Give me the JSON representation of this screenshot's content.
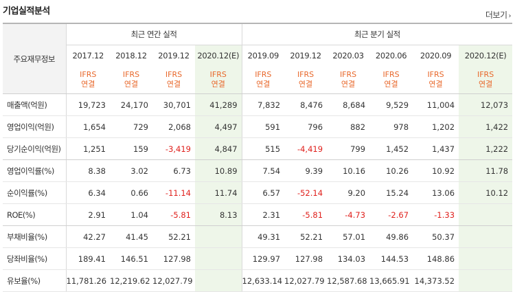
{
  "header": {
    "title": "기업실적분석",
    "more_label": "더보기"
  },
  "table": {
    "label_header": "주요재무정보",
    "group_annual": "최근 연간 실적",
    "group_quarter": "최근 분기 실적",
    "periods": [
      "2017.12",
      "2018.12",
      "2019.12",
      "2020.12(E)",
      "2019.09",
      "2019.12",
      "2020.03",
      "2020.06",
      "2020.09",
      "2020.12(E)"
    ],
    "ifrs_line1": "IFRS",
    "ifrs_line2": "연결",
    "rows": [
      {
        "label": "매출액(억원)",
        "values": [
          "19,723",
          "24,170",
          "30,701",
          "41,289",
          "7,832",
          "8,476",
          "8,684",
          "9,529",
          "11,004",
          "12,073"
        ]
      },
      {
        "label": "영업이익(억원)",
        "values": [
          "1,654",
          "729",
          "2,068",
          "4,497",
          "591",
          "796",
          "882",
          "978",
          "1,202",
          "1,422"
        ]
      },
      {
        "label": "당기순이익(억원)",
        "values": [
          "1,251",
          "159",
          "-3,419",
          "4,847",
          "515",
          "-4,419",
          "799",
          "1,452",
          "1,437",
          "1,222"
        ]
      },
      {
        "label": "영업이익률(%)",
        "values": [
          "8.38",
          "3.02",
          "6.73",
          "10.89",
          "7.54",
          "9.39",
          "10.16",
          "10.26",
          "10.92",
          "11.78"
        ]
      },
      {
        "label": "순이익률(%)",
        "values": [
          "6.34",
          "0.66",
          "-11.14",
          "11.74",
          "6.57",
          "-52.14",
          "9.20",
          "15.24",
          "13.06",
          "10.12"
        ]
      },
      {
        "label": "ROE(%)",
        "values": [
          "2.91",
          "1.04",
          "-5.81",
          "8.13",
          "2.31",
          "-5.81",
          "-4.73",
          "-2.67",
          "-1.33",
          ""
        ]
      },
      {
        "label": "부채비율(%)",
        "values": [
          "42.27",
          "41.45",
          "52.21",
          "",
          "49.31",
          "52.21",
          "57.01",
          "49.86",
          "50.37",
          ""
        ]
      },
      {
        "label": "당좌비율(%)",
        "values": [
          "189.41",
          "146.51",
          "127.98",
          "",
          "129.97",
          "127.98",
          "134.03",
          "144.53",
          "148.86",
          ""
        ]
      },
      {
        "label": "유보율(%)",
        "values": [
          "11,781.26",
          "12,219.62",
          "12,027.79",
          "",
          "12,633.14",
          "12,027.79",
          "12,587.68",
          "13,665.91",
          "14,373.52",
          ""
        ]
      }
    ],
    "colors": {
      "highlight_bg": "#eef6e9",
      "negative": "#e0201c",
      "ifrs": "#e8672a"
    }
  }
}
